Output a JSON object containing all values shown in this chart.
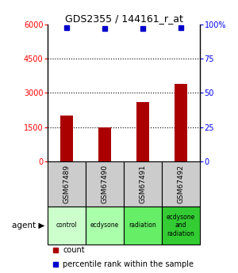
{
  "title": "GDS2355 / 144161_r_at",
  "samples": [
    "GSM67489",
    "GSM67490",
    "GSM67491",
    "GSM67492"
  ],
  "agents": [
    "control",
    "ecdysone",
    "radiation",
    "ecdysone\nand\nradiation"
  ],
  "agent_colors": [
    "#ccffcc",
    "#aaffaa",
    "#66ee66",
    "#33cc33"
  ],
  "counts": [
    2000,
    1500,
    2600,
    3400
  ],
  "percentile_ranks": [
    98,
    97,
    97,
    98
  ],
  "ylim_left": [
    0,
    6000
  ],
  "ylim_right": [
    0,
    100
  ],
  "yticks_left": [
    0,
    1500,
    3000,
    4500,
    6000
  ],
  "yticks_right": [
    0,
    25,
    50,
    75,
    100
  ],
  "bar_color": "#aa0000",
  "dot_color": "#0000cc",
  "sample_box_color": "#cccccc",
  "background_color": "#ffffff",
  "legend_count_color": "#aa0000",
  "legend_pct_color": "#0000cc"
}
